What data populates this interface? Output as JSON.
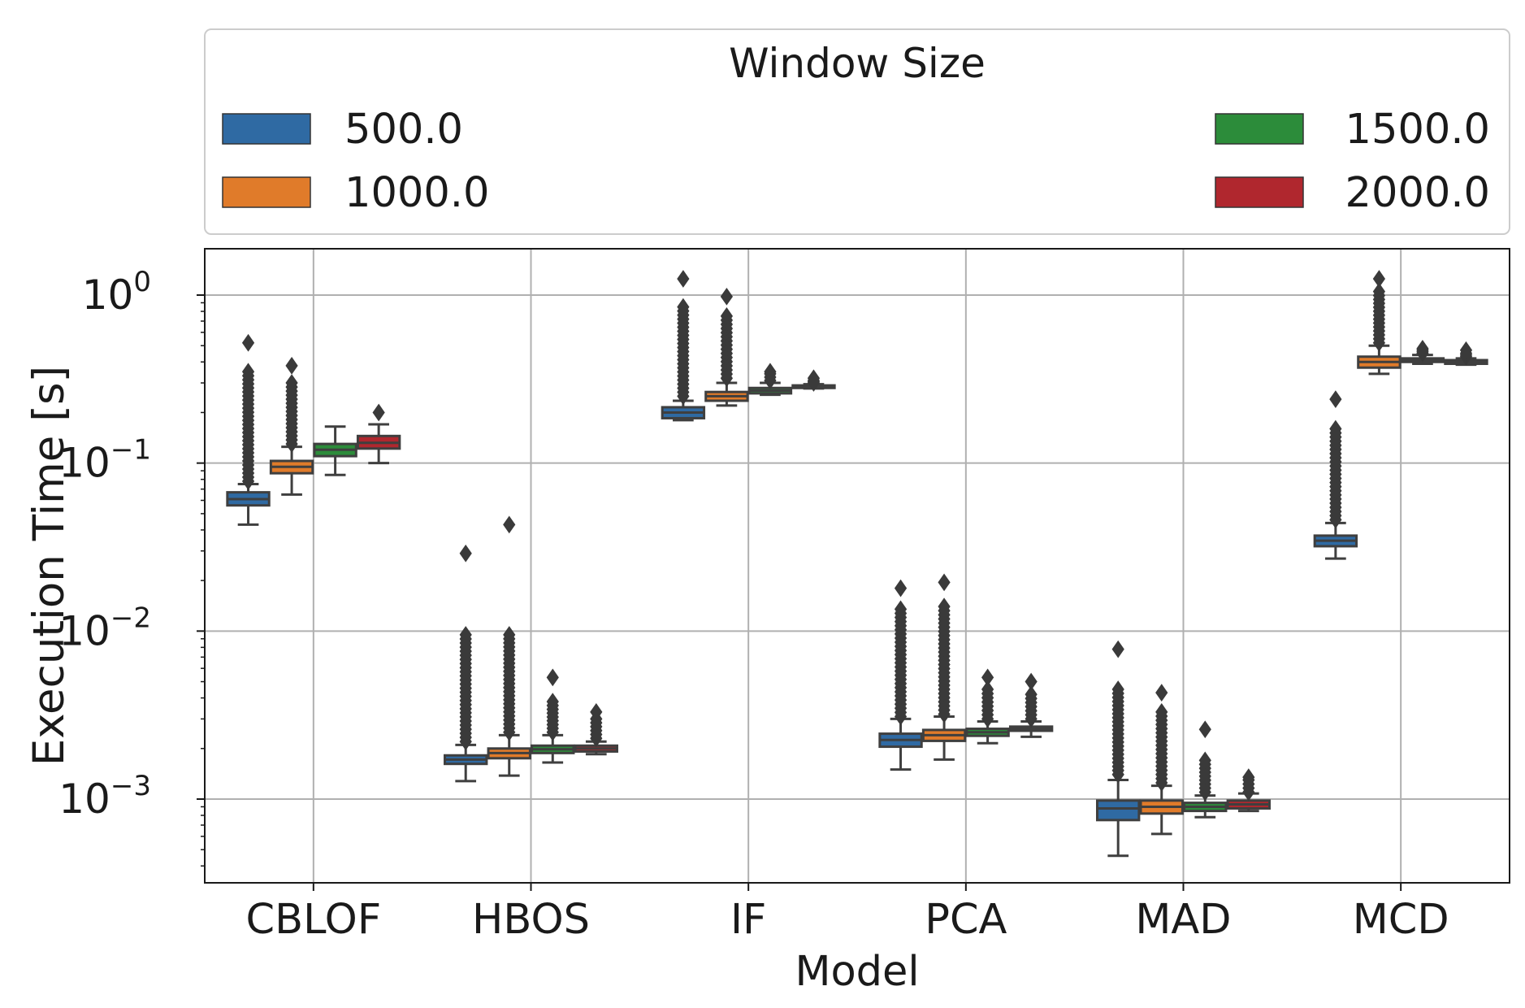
{
  "chart_data": {
    "type": "box",
    "title": "",
    "xlabel": "Model",
    "ylabel": "Execution Time [s]",
    "yscale": "log",
    "ylim": [
      0.0003,
      2.0
    ],
    "grid": true,
    "categories": [
      "CBLOF",
      "HBOS",
      "IF",
      "PCA",
      "MAD",
      "MCD"
    ],
    "y_ticks": [
      {
        "value": 1,
        "base": "10",
        "exp": "0"
      },
      {
        "value": 0.1,
        "base": "10",
        "exp": "−1"
      },
      {
        "value": 0.01,
        "base": "10",
        "exp": "−2"
      },
      {
        "value": 0.001,
        "base": "10",
        "exp": "−3"
      }
    ],
    "legend": {
      "title": "Window Size",
      "placement": "top",
      "entries": [
        "500.0",
        "1000.0",
        "1500.0",
        "2000.0"
      ]
    },
    "series": [
      {
        "name": "500.0",
        "color": "#2f6aa3",
        "boxes": [
          {
            "q1": 0.056,
            "median": 0.061,
            "q3": 0.067,
            "whislo": 0.043,
            "whishi": 0.075,
            "outlier_range": [
              0.078,
              0.35
            ],
            "outlier_max": 0.52
          },
          {
            "q1": 0.00162,
            "median": 0.00172,
            "q3": 0.00182,
            "whislo": 0.00128,
            "whishi": 0.0021,
            "outlier_range": [
              0.0022,
              0.0095
            ],
            "outlier_max": 0.029
          },
          {
            "q1": 0.185,
            "median": 0.2,
            "q3": 0.215,
            "whislo": 0.18,
            "whishi": 0.235,
            "outlier_range": [
              0.25,
              0.85
            ],
            "outlier_max": 1.25
          },
          {
            "q1": 0.00205,
            "median": 0.00225,
            "q3": 0.00245,
            "whislo": 0.0015,
            "whishi": 0.003,
            "outlier_range": [
              0.0031,
              0.0135
            ],
            "outlier_max": 0.018
          },
          {
            "q1": 0.00075,
            "median": 0.00088,
            "q3": 0.00098,
            "whislo": 0.00046,
            "whishi": 0.0013,
            "outlier_range": [
              0.0014,
              0.0045
            ],
            "outlier_max": 0.0078
          },
          {
            "q1": 0.032,
            "median": 0.0345,
            "q3": 0.037,
            "whislo": 0.027,
            "whishi": 0.044,
            "outlier_range": [
              0.046,
              0.16
            ],
            "outlier_max": 0.24
          }
        ]
      },
      {
        "name": "1000.0",
        "color": "#e07b2a",
        "boxes": [
          {
            "q1": 0.087,
            "median": 0.095,
            "q3": 0.103,
            "whislo": 0.065,
            "whishi": 0.125,
            "outlier_range": [
              0.13,
              0.3
            ],
            "outlier_max": 0.38
          },
          {
            "q1": 0.00175,
            "median": 0.00188,
            "q3": 0.002,
            "whislo": 0.00138,
            "whishi": 0.0024,
            "outlier_range": [
              0.0025,
              0.0095
            ],
            "outlier_max": 0.043
          },
          {
            "q1": 0.235,
            "median": 0.25,
            "q3": 0.265,
            "whislo": 0.22,
            "whishi": 0.3,
            "outlier_range": [
              0.32,
              0.75
            ],
            "outlier_max": 0.98
          },
          {
            "q1": 0.00222,
            "median": 0.0024,
            "q3": 0.00258,
            "whislo": 0.00172,
            "whishi": 0.0031,
            "outlier_range": [
              0.0032,
              0.014
            ],
            "outlier_max": 0.0195
          },
          {
            "q1": 0.00082,
            "median": 0.0009,
            "q3": 0.00098,
            "whislo": 0.00062,
            "whishi": 0.0012,
            "outlier_range": [
              0.00125,
              0.0033
            ],
            "outlier_max": 0.0043
          },
          {
            "q1": 0.37,
            "median": 0.4,
            "q3": 0.43,
            "whislo": 0.34,
            "whishi": 0.5,
            "outlier_range": [
              0.52,
              1.05
            ],
            "outlier_max": 1.25
          }
        ]
      },
      {
        "name": "1500.0",
        "color": "#2c8c3a",
        "boxes": [
          {
            "q1": 0.11,
            "median": 0.12,
            "q3": 0.13,
            "whislo": 0.085,
            "whishi": 0.165,
            "outlier_range": [],
            "outlier_max": null
          },
          {
            "q1": 0.00188,
            "median": 0.00198,
            "q3": 0.00208,
            "whislo": 0.00165,
            "whishi": 0.0024,
            "outlier_range": [
              0.0025,
              0.0038
            ],
            "outlier_max": 0.0053
          },
          {
            "q1": 0.26,
            "median": 0.27,
            "q3": 0.28,
            "whislo": 0.255,
            "whishi": 0.3,
            "outlier_range": [
              0.31,
              0.34
            ],
            "outlier_max": 0.35
          },
          {
            "q1": 0.00238,
            "median": 0.0025,
            "q3": 0.00262,
            "whislo": 0.00215,
            "whishi": 0.0029,
            "outlier_range": [
              0.003,
              0.0045
            ],
            "outlier_max": 0.0053
          },
          {
            "q1": 0.00085,
            "median": 0.0009,
            "q3": 0.00095,
            "whislo": 0.00078,
            "whishi": 0.00105,
            "outlier_range": [
              0.0011,
              0.0017
            ],
            "outlier_max": 0.0026
          },
          {
            "q1": 0.4,
            "median": 0.41,
            "q3": 0.42,
            "whislo": 0.39,
            "whishi": 0.44,
            "outlier_range": [
              0.45,
              0.47
            ],
            "outlier_max": 0.48
          }
        ]
      },
      {
        "name": "2000.0",
        "color": "#b0272e",
        "boxes": [
          {
            "q1": 0.122,
            "median": 0.132,
            "q3": 0.145,
            "whislo": 0.1,
            "whishi": 0.17,
            "outlier_range": [],
            "outlier_max": 0.2
          },
          {
            "q1": 0.00192,
            "median": 0.002,
            "q3": 0.00208,
            "whislo": 0.00185,
            "whishi": 0.0022,
            "outlier_range": [
              0.0023,
              0.003
            ],
            "outlier_max": 0.0033
          },
          {
            "q1": 0.28,
            "median": 0.285,
            "q3": 0.29,
            "whislo": 0.278,
            "whishi": 0.295,
            "outlier_range": [
              0.3,
              0.31
            ],
            "outlier_max": 0.32
          },
          {
            "q1": 0.00255,
            "median": 0.00262,
            "q3": 0.0027,
            "whislo": 0.00235,
            "whishi": 0.0029,
            "outlier_range": [
              0.003,
              0.0042
            ],
            "outlier_max": 0.005
          },
          {
            "q1": 0.00088,
            "median": 0.00093,
            "q3": 0.00098,
            "whislo": 0.00085,
            "whishi": 0.00108,
            "outlier_range": [
              0.0011,
              0.0013
            ],
            "outlier_max": 0.00135
          },
          {
            "q1": 0.39,
            "median": 0.4,
            "q3": 0.41,
            "whislo": 0.385,
            "whishi": 0.42,
            "outlier_range": [
              0.43,
              0.45
            ],
            "outlier_max": 0.47
          }
        ]
      }
    ]
  }
}
